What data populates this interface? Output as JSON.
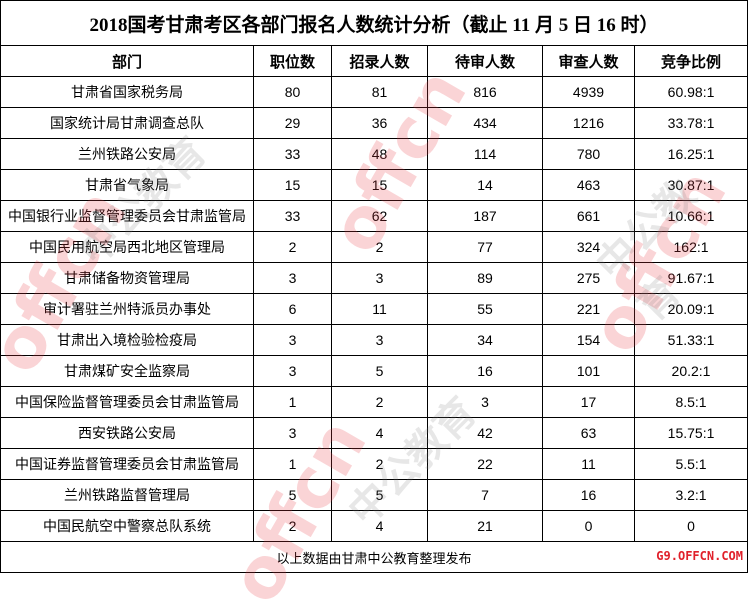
{
  "title": "2018国考甘肃考区各部门报名人数统计分析（截止 11 月 5 日 16 时）",
  "columns": [
    "部门",
    "职位数",
    "招录人数",
    "待审人数",
    "审查人数",
    "竞争比例"
  ],
  "rows": [
    [
      "甘肃省国家税务局",
      "80",
      "81",
      "816",
      "4939",
      "60.98:1"
    ],
    [
      "国家统计局甘肃调查总队",
      "29",
      "36",
      "434",
      "1216",
      "33.78:1"
    ],
    [
      "兰州铁路公安局",
      "33",
      "48",
      "114",
      "780",
      "16.25:1"
    ],
    [
      "甘肃省气象局",
      "15",
      "15",
      "14",
      "463",
      "30.87:1"
    ],
    [
      "中国银行业监督管理委员会甘肃监管局",
      "33",
      "62",
      "187",
      "661",
      "10.66:1"
    ],
    [
      "中国民用航空局西北地区管理局",
      "2",
      "2",
      "77",
      "324",
      "162:1"
    ],
    [
      "甘肃储备物资管理局",
      "3",
      "3",
      "89",
      "275",
      "91.67:1"
    ],
    [
      "审计署驻兰州特派员办事处",
      "6",
      "11",
      "55",
      "221",
      "20.09:1"
    ],
    [
      "甘肃出入境检验检疫局",
      "3",
      "3",
      "34",
      "154",
      "51.33:1"
    ],
    [
      "甘肃煤矿安全监察局",
      "3",
      "5",
      "16",
      "101",
      "20.2:1"
    ],
    [
      "中国保险监督管理委员会甘肃监管局",
      "1",
      "2",
      "3",
      "17",
      "8.5:1"
    ],
    [
      "西安铁路公安局",
      "3",
      "4",
      "42",
      "63",
      "15.75:1"
    ],
    [
      "中国证券监督管理委员会甘肃监管局",
      "1",
      "2",
      "22",
      "11",
      "5.5:1"
    ],
    [
      "兰州铁路监督管理局",
      "5",
      "5",
      "7",
      "16",
      "3.2:1"
    ],
    [
      "中国民航空中警察总队系统",
      "2",
      "4",
      "21",
      "0",
      "0"
    ]
  ],
  "footer": "以上数据由甘肃中公教育整理发布",
  "watermark": {
    "latin": "offcn",
    "chinese": "中公教育",
    "site": "G9.OFFCN.COM"
  },
  "colors": {
    "watermark_red": "#e63c46",
    "site_red": "#e0202a"
  }
}
